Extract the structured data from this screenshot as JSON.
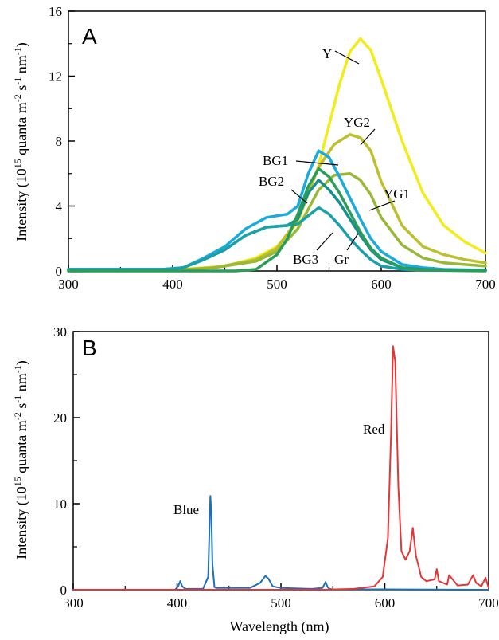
{
  "chart_data": [
    {
      "type": "line",
      "panel_label": "A",
      "ylabel": "Intensity (10^15 quanta m^-2 s^-1 nm^-1)",
      "xlabel": "",
      "xlim": [
        300,
        700
      ],
      "ylim": [
        0,
        16
      ],
      "xticks": [
        300,
        400,
        500,
        600,
        700
      ],
      "yticks": [
        0,
        4,
        8,
        12,
        16
      ],
      "series": [
        {
          "name": "Y",
          "color": "#f2ec1c",
          "x": [
            300,
            400,
            450,
            480,
            500,
            520,
            540,
            560,
            570,
            580,
            590,
            600,
            620,
            640,
            660,
            680,
            700
          ],
          "y": [
            0,
            0.05,
            0.3,
            0.8,
            1.5,
            3.0,
            6.5,
            11.5,
            13.5,
            14.3,
            13.6,
            11.8,
            8.0,
            4.8,
            2.8,
            1.8,
            1.1
          ]
        },
        {
          "name": "YG2",
          "color": "#bcc02c",
          "x": [
            300,
            400,
            440,
            480,
            500,
            520,
            540,
            555,
            570,
            580,
            590,
            600,
            620,
            640,
            660,
            680,
            700
          ],
          "y": [
            0,
            0.05,
            0.2,
            0.7,
            1.4,
            3.2,
            6.4,
            7.8,
            8.4,
            8.2,
            7.4,
            5.5,
            2.8,
            1.5,
            1.0,
            0.7,
            0.5
          ]
        },
        {
          "name": "YG1",
          "color": "#9ab838",
          "x": [
            300,
            400,
            440,
            480,
            500,
            520,
            540,
            555,
            570,
            580,
            590,
            600,
            620,
            640,
            660,
            680,
            700
          ],
          "y": [
            0,
            0.05,
            0.2,
            0.6,
            1.2,
            2.6,
            5.0,
            5.9,
            6.0,
            5.6,
            4.7,
            3.3,
            1.6,
            0.8,
            0.5,
            0.4,
            0.3
          ]
        },
        {
          "name": "BG1",
          "color": "#1aaadc",
          "x": [
            300,
            390,
            410,
            430,
            450,
            470,
            490,
            510,
            520,
            530,
            540,
            550,
            560,
            570,
            580,
            590,
            600,
            620,
            640,
            660,
            700
          ],
          "y": [
            0.1,
            0.1,
            0.2,
            0.8,
            1.5,
            2.6,
            3.3,
            3.5,
            4.0,
            6.0,
            7.4,
            7.0,
            5.8,
            4.5,
            3.2,
            2.0,
            1.2,
            0.4,
            0.2,
            0.1,
            0.05
          ]
        },
        {
          "name": "BG2",
          "color": "#178f8e",
          "x": [
            300,
            390,
            410,
            430,
            450,
            470,
            490,
            510,
            520,
            530,
            540,
            550,
            560,
            570,
            580,
            590,
            600,
            620,
            640,
            660,
            700
          ],
          "y": [
            0.1,
            0.1,
            0.2,
            0.7,
            1.3,
            2.2,
            2.7,
            2.8,
            3.2,
            4.8,
            5.6,
            5.0,
            4.2,
            3.2,
            2.2,
            1.3,
            0.7,
            0.2,
            0.1,
            0.05,
            0.05
          ]
        },
        {
          "name": "BG3",
          "color": "#1aa0a8",
          "x": [
            300,
            390,
            410,
            430,
            450,
            470,
            490,
            510,
            520,
            530,
            540,
            550,
            560,
            570,
            580,
            590,
            600,
            620,
            640,
            660,
            700
          ],
          "y": [
            0.1,
            0.1,
            0.2,
            0.7,
            1.3,
            2.2,
            2.7,
            2.8,
            2.9,
            3.4,
            3.9,
            3.5,
            2.8,
            2.0,
            1.3,
            0.7,
            0.3,
            0.1,
            0.05,
            0.05,
            0.05
          ]
        },
        {
          "name": "Gr",
          "color": "#2a9e58",
          "x": [
            300,
            460,
            480,
            500,
            510,
            520,
            530,
            540,
            550,
            560,
            570,
            580,
            590,
            600,
            620,
            640,
            700
          ],
          "y": [
            0,
            0,
            0.1,
            1.0,
            2.0,
            3.5,
            5.2,
            6.3,
            5.8,
            4.8,
            3.6,
            2.4,
            1.4,
            0.8,
            0.2,
            0.05,
            0
          ]
        }
      ],
      "series_labels": {
        "Y": "Y",
        "YG2": "YG2",
        "YG1": "YG1",
        "BG1": "BG1",
        "BG2": "BG2",
        "BG3": "BG3",
        "Gr": "Gr"
      }
    },
    {
      "type": "line",
      "panel_label": "B",
      "ylabel": "Intensity (10^15 quanta m^-2 s^-1 nm^-1)",
      "xlabel": "Wavelength (nm)",
      "xlim": [
        300,
        700
      ],
      "ylim": [
        0,
        30
      ],
      "xticks": [
        300,
        400,
        500,
        600,
        700
      ],
      "yticks": [
        0,
        10,
        20,
        30
      ],
      "series": [
        {
          "name": "Blue",
          "color": "#1d6fb8",
          "x": [
            300,
            398,
            401,
            403,
            405,
            408,
            425,
            430,
            432,
            433,
            434,
            436,
            438,
            440,
            470,
            480,
            485,
            488,
            492,
            500,
            530,
            540,
            543,
            545,
            547,
            550,
            600,
            700
          ],
          "y": [
            0,
            0,
            0.4,
            1.0,
            0.4,
            0.1,
            0.1,
            1.5,
            10.9,
            9.0,
            3.0,
            0.3,
            0.2,
            0.2,
            0.2,
            0.8,
            1.6,
            1.3,
            0.4,
            0.2,
            0.1,
            0.2,
            0.9,
            0.3,
            0.1,
            0.05,
            0.05,
            0
          ]
        },
        {
          "name": "Red",
          "color": "#e53535",
          "x": [
            300,
            540,
            570,
            590,
            598,
            603,
            606,
            608,
            610,
            613,
            616,
            620,
            624,
            627,
            630,
            635,
            640,
            648,
            650,
            652,
            660,
            662,
            670,
            680,
            685,
            688,
            693,
            697,
            700
          ],
          "y": [
            0,
            0,
            0.1,
            0.4,
            1.5,
            6.0,
            18.0,
            28.3,
            26.5,
            12.0,
            4.5,
            3.5,
            4.5,
            7.2,
            4.0,
            1.5,
            1.0,
            1.2,
            2.4,
            1.0,
            0.6,
            1.7,
            0.5,
            0.6,
            1.7,
            0.8,
            0.4,
            1.4,
            0.2
          ]
        }
      ],
      "series_labels": {
        "Blue": "Blue",
        "Red": "Red"
      }
    }
  ]
}
